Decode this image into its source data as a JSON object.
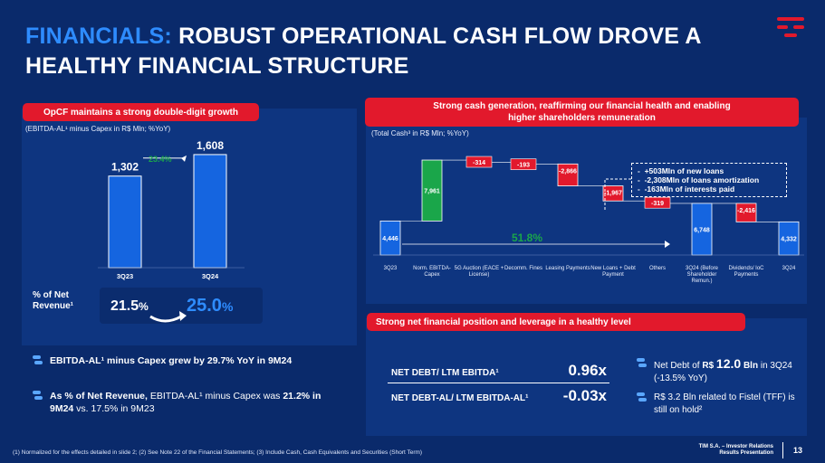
{
  "header": {
    "title_highlight": "FINANCIALS:",
    "title_rest": "ROBUST OPERATIONAL CASH FLOW DROVE A HEALTHY FINANCIAL STRUCTURE",
    "logo": "tim-logo-icon"
  },
  "left_panel": {
    "pill": "OpCF maintains a strong double-digit growth",
    "subtitle": "(EBITDA-AL¹ minus Capex in R$ Mln; %YoY)",
    "growth_label": "23.4%",
    "pct_label": "% of Net Revenue¹",
    "pct_from": "21.5%",
    "pct_to": "25.0%",
    "pct_from_num": "21.5",
    "pct_to_num": "25.0",
    "pct_unit": "%"
  },
  "right_top_panel": {
    "pill": "Strong cash generation, reaffirming our financial health and enabling higher shareholders remuneration",
    "subtitle": "(Total Cash³ in R$ Mln; %YoY)",
    "growth_label": "51.8%",
    "callout": [
      "+503Mln of new loans",
      "-2,308Mln of loans amortization",
      "-163Mln of interests paid"
    ]
  },
  "right_bottom_panel": {
    "pill": "Strong net financial position and leverage in a healthy level",
    "metrics": [
      {
        "label": "NET DEBT/ LTM EBITDA¹",
        "value": "0.96x"
      },
      {
        "label": "NET DEBT-AL/ LTM EBITDA-AL¹",
        "value": "-0.03x"
      }
    ],
    "bullets": [
      {
        "pre": "Net Debt of ",
        "bold_small": "R$ ",
        "bold_big": "12.0",
        "bold_post": " Bln",
        "post": " in 3Q24 (-13.5% YoY)"
      },
      {
        "text": "R$ 3.2 Bln related to Fistel (TFF) is still on hold²"
      }
    ]
  },
  "left_bullets": [
    {
      "bold": "EBITDA-AL¹ minus Capex grew by 29.7% YoY in 9M24",
      "rest": ""
    },
    {
      "bold": "As % of Net Revenue,",
      "mid": " EBITDA-AL¹ minus Capex was ",
      "bold2": "21.2% in 9M24",
      "rest": " vs. 17.5% in 9M23"
    }
  ],
  "footer": {
    "notes": "(1)    Normalized for the effects detailed in slide 2; (2)    See Note 22 of the Financial Statements; (3)    Include Cash, Cash Equivalents and Securities (Short Term)",
    "brand_line1": "TIM S.A. – Investor Relations",
    "brand_line2": "Results Presentation",
    "page": "13"
  },
  "colors": {
    "background": "#0a2a6b",
    "panel": "#0e3580",
    "accent_red": "#e2192c",
    "accent_blue": "#2e8cff",
    "bar_blue": "#1565e0",
    "green": "#1aa64a"
  },
  "chart_data": [
    {
      "type": "bar",
      "title": "OpCF maintains a strong double-digit growth",
      "ylabel": "EBITDA-AL¹ minus Capex in R$ Mln",
      "categories": [
        "3Q23",
        "3Q24"
      ],
      "values": [
        1302,
        1608
      ],
      "value_labels": [
        "1,302",
        "1,608"
      ],
      "growth": "23.4%",
      "ylim": [
        0,
        1800
      ]
    },
    {
      "type": "bar",
      "subtype": "waterfall",
      "title": "Total Cash³ in R$ Mln; %YoY",
      "ylim": [
        0,
        13000
      ],
      "steps": [
        {
          "category": "3Q23",
          "value": 4446,
          "label": "4,446",
          "kind": "total"
        },
        {
          "category": "Norm. EBITDA-Capex",
          "value": 7961,
          "label": "7,961",
          "kind": "increase"
        },
        {
          "category": "5G Auction (EACE + License)",
          "value": -314,
          "label": "-314",
          "kind": "decrease"
        },
        {
          "category": "Decomm. Fines",
          "value": -193,
          "label": "-193",
          "kind": "decrease"
        },
        {
          "category": "Leasing Payments",
          "value": -2866,
          "label": "-2,866",
          "kind": "decrease"
        },
        {
          "category": "New Loans + Debt Payment",
          "value": -1967,
          "label": "-1,967",
          "kind": "decrease"
        },
        {
          "category": "Others",
          "value": -319,
          "label": "-319",
          "kind": "decrease"
        },
        {
          "category": "3Q24 (Before Shareholder Remun.)",
          "value": 6748,
          "label": "6,748",
          "kind": "total"
        },
        {
          "category": "Dividends/ IoC Payments",
          "value": -2416,
          "label": "-2,416",
          "kind": "decrease"
        },
        {
          "category": "3Q24",
          "value": 4332,
          "label": "4,332",
          "kind": "total"
        }
      ],
      "growth": "51.8%"
    }
  ]
}
